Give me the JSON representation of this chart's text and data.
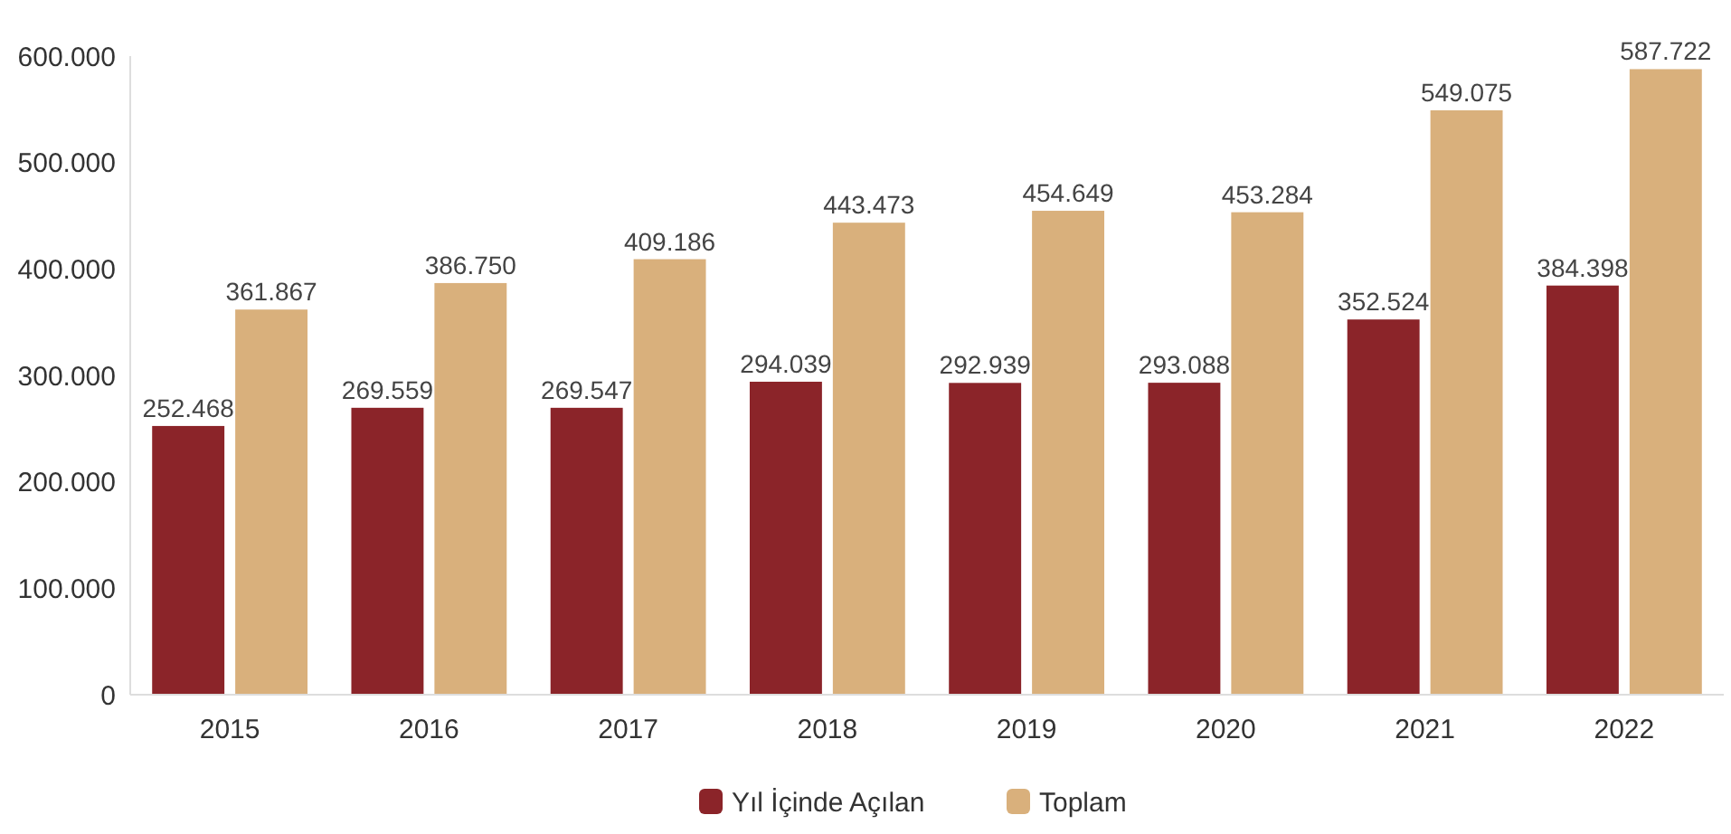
{
  "chart_data": {
    "type": "bar",
    "categories": [
      "2015",
      "2016",
      "2017",
      "2018",
      "2019",
      "2020",
      "2021",
      "2022"
    ],
    "series": [
      {
        "name": "Yıl İçinde Açılan",
        "color": "#8b2429",
        "values": [
          252468,
          269559,
          269547,
          294039,
          292939,
          293088,
          352524,
          384398
        ],
        "value_labels": [
          "252.468",
          "269.559",
          "269.547",
          "294.039",
          "292.939",
          "293.088",
          "352.524",
          "384.398"
        ]
      },
      {
        "name": "Toplam",
        "color": "#d9b07c",
        "values": [
          361867,
          386750,
          409186,
          443473,
          454649,
          453284,
          549075,
          587722
        ],
        "value_labels": [
          "361.867",
          "386.750",
          "409.186",
          "443.473",
          "454.649",
          "453.284",
          "549.075",
          "587.722"
        ]
      }
    ],
    "ylim": [
      0,
      600000
    ],
    "yticks": [
      {
        "value": 0,
        "label": "0"
      },
      {
        "value": 100000,
        "label": "100.000"
      },
      {
        "value": 200000,
        "label": "200.000"
      },
      {
        "value": 300000,
        "label": "300.000"
      },
      {
        "value": 400000,
        "label": "400.000"
      },
      {
        "value": 500000,
        "label": "500.000"
      },
      {
        "value": 600000,
        "label": "600.000"
      }
    ],
    "grid": false,
    "legend": "bottom"
  }
}
